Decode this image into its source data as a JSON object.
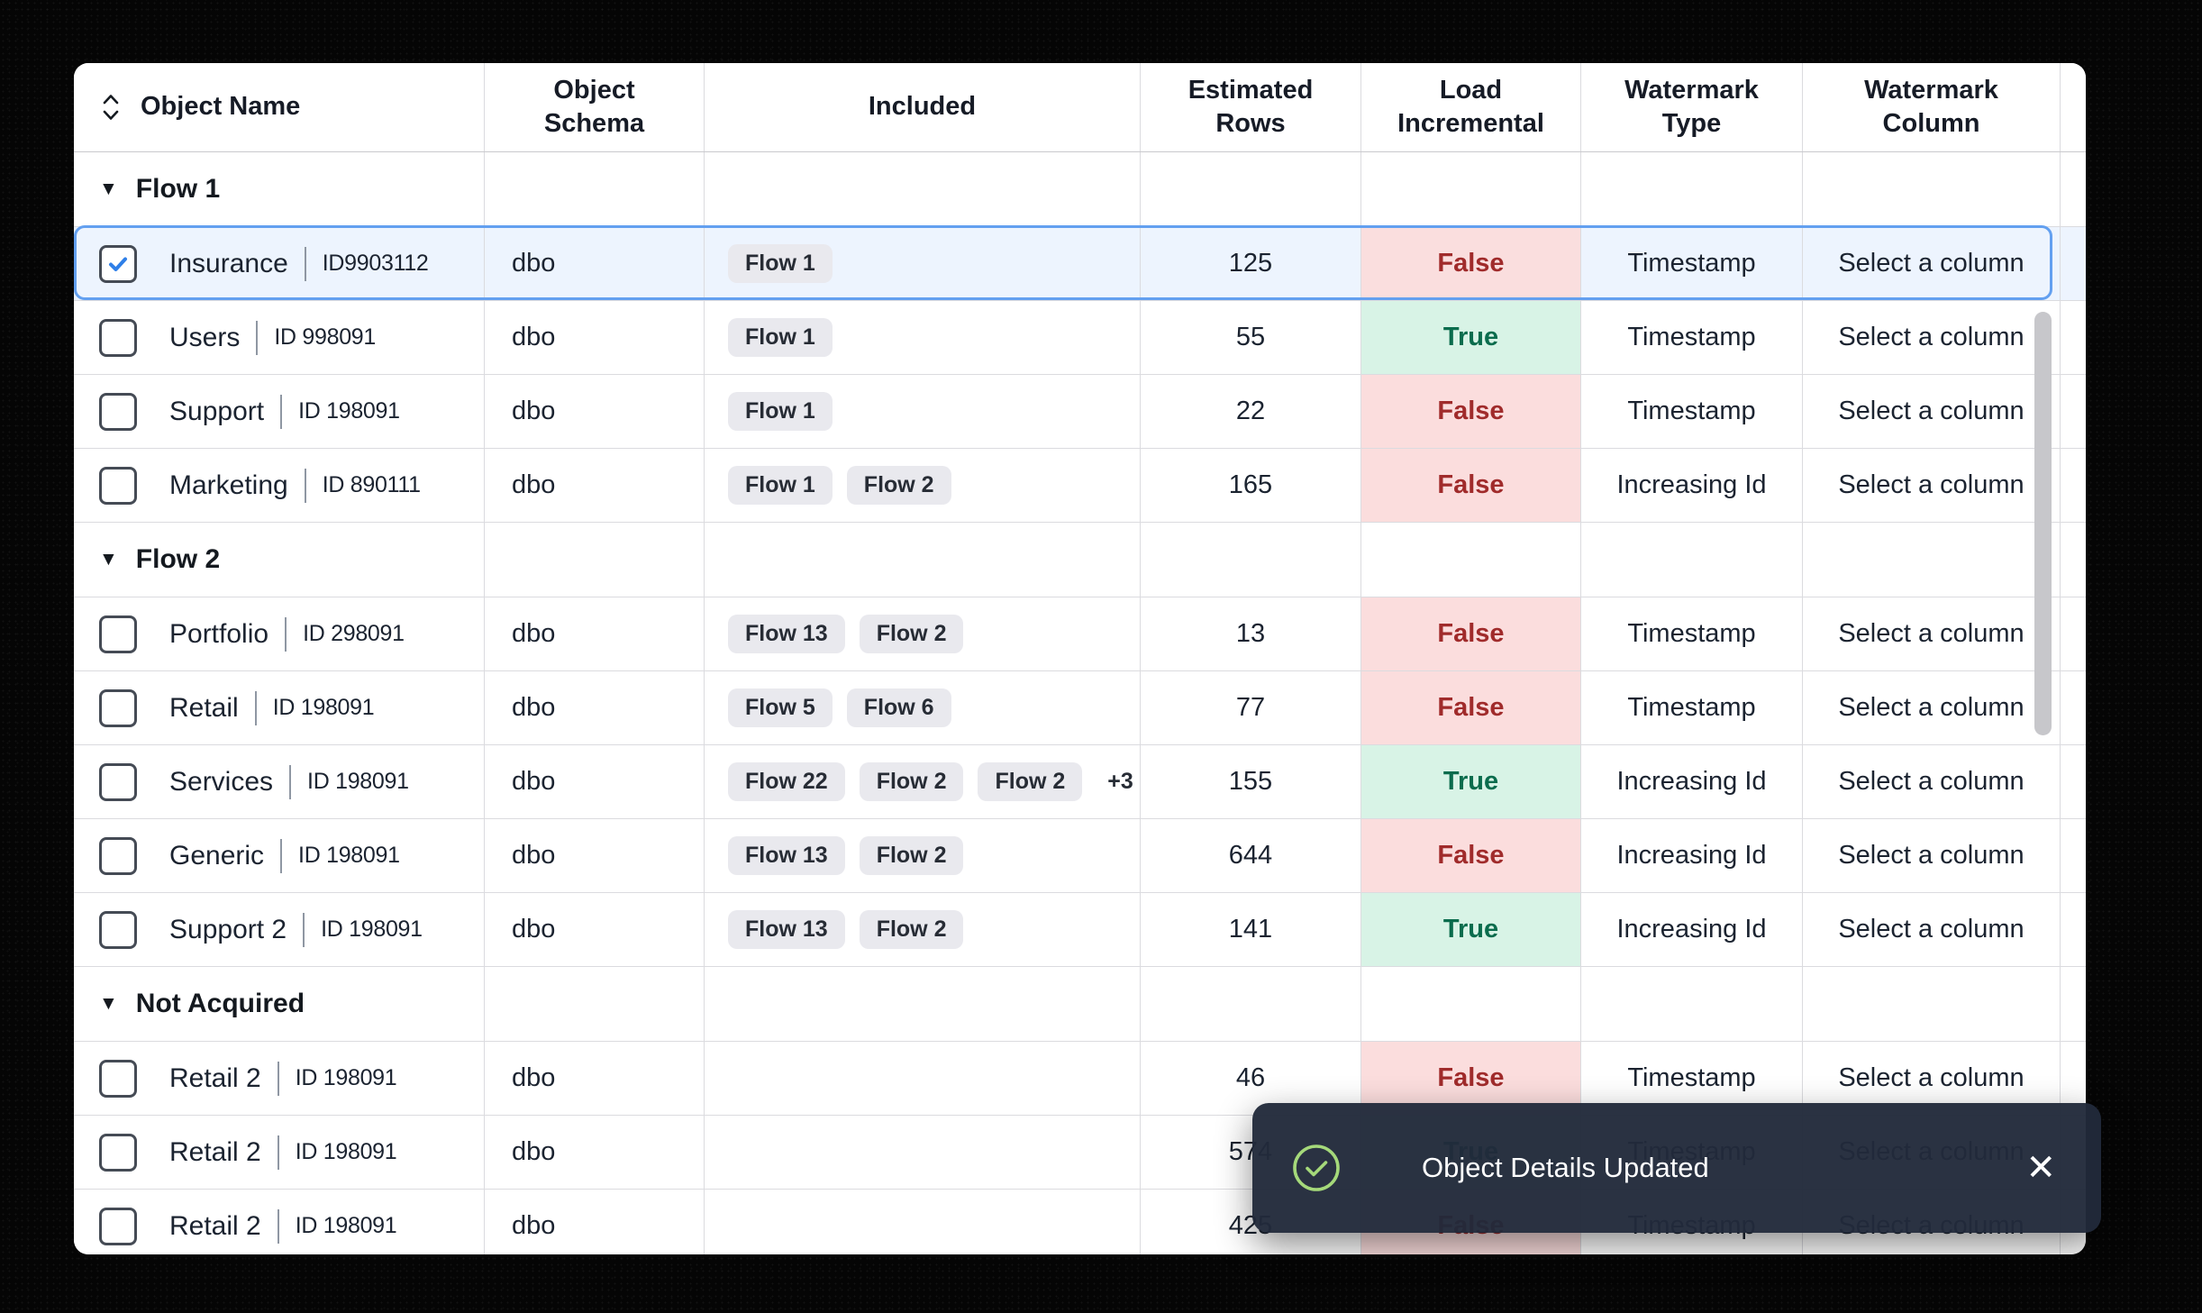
{
  "table": {
    "columns": [
      {
        "label": "Object Name",
        "sortable": true
      },
      {
        "label": "Object Schema"
      },
      {
        "label": "Included"
      },
      {
        "label": "Estimated Rows"
      },
      {
        "label": "Load Incremental"
      },
      {
        "label": "Watermark Type"
      },
      {
        "label": "Watermark Column"
      }
    ],
    "groups": [
      {
        "label": "Flow 1",
        "rows": [
          {
            "name": "Insurance",
            "id": "ID9903112",
            "schema": "dbo",
            "chips": [
              "Flow 1"
            ],
            "more": "",
            "estimated_rows": "125",
            "load_incremental": "False",
            "watermark_type": "Timestamp",
            "watermark_column": "Select a column",
            "checked": true,
            "selected": true
          },
          {
            "name": "Users",
            "id": "ID 998091",
            "schema": "dbo",
            "chips": [
              "Flow 1"
            ],
            "more": "",
            "estimated_rows": "55",
            "load_incremental": "True",
            "watermark_type": "Timestamp",
            "watermark_column": "Select a column",
            "checked": false,
            "selected": false
          },
          {
            "name": "Support",
            "id": "ID 198091",
            "schema": "dbo",
            "chips": [
              "Flow 1"
            ],
            "more": "",
            "estimated_rows": "22",
            "load_incremental": "False",
            "watermark_type": "Timestamp",
            "watermark_column": "Select a column",
            "checked": false,
            "selected": false
          },
          {
            "name": "Marketing",
            "id": "ID 890111",
            "schema": "dbo",
            "chips": [
              "Flow 1",
              "Flow 2"
            ],
            "more": "",
            "estimated_rows": "165",
            "load_incremental": "False",
            "watermark_type": "Increasing Id",
            "watermark_column": "Select a column",
            "checked": false,
            "selected": false
          }
        ]
      },
      {
        "label": "Flow 2",
        "rows": [
          {
            "name": "Portfolio",
            "id": "ID 298091",
            "schema": "dbo",
            "chips": [
              "Flow 13",
              "Flow 2"
            ],
            "more": "",
            "estimated_rows": "13",
            "load_incremental": "False",
            "watermark_type": "Timestamp",
            "watermark_column": "Select a column",
            "checked": false,
            "selected": false
          },
          {
            "name": "Retail",
            "id": "ID 198091",
            "schema": "dbo",
            "chips": [
              "Flow 5",
              "Flow 6"
            ],
            "more": "",
            "estimated_rows": "77",
            "load_incremental": "False",
            "watermark_type": "Timestamp",
            "watermark_column": "Select a column",
            "checked": false,
            "selected": false
          },
          {
            "name": "Services",
            "id": "ID 198091",
            "schema": "dbo",
            "chips": [
              "Flow 22",
              "Flow 2",
              "Flow 2"
            ],
            "more": "+3",
            "estimated_rows": "155",
            "load_incremental": "True",
            "watermark_type": "Increasing Id",
            "watermark_column": "Select a column",
            "checked": false,
            "selected": false
          },
          {
            "name": "Generic",
            "id": "ID 198091",
            "schema": "dbo",
            "chips": [
              "Flow 13",
              "Flow 2"
            ],
            "more": "",
            "estimated_rows": "644",
            "load_incremental": "False",
            "watermark_type": "Increasing Id",
            "watermark_column": "Select a column",
            "checked": false,
            "selected": false
          },
          {
            "name": "Support 2",
            "id": "ID 198091",
            "schema": "dbo",
            "chips": [
              "Flow 13",
              "Flow 2"
            ],
            "more": "",
            "estimated_rows": "141",
            "load_incremental": "True",
            "watermark_type": "Increasing Id",
            "watermark_column": "Select a column",
            "checked": false,
            "selected": false
          }
        ]
      },
      {
        "label": "Not Acquired",
        "rows": [
          {
            "name": "Retail 2",
            "id": "ID 198091",
            "schema": "dbo",
            "chips": [],
            "more": "",
            "estimated_rows": "46",
            "load_incremental": "False",
            "watermark_type": "Timestamp",
            "watermark_column": "Select a column",
            "checked": false,
            "selected": false
          },
          {
            "name": "Retail 2",
            "id": "ID 198091",
            "schema": "dbo",
            "chips": [],
            "more": "",
            "estimated_rows": "574",
            "load_incremental": "True",
            "watermark_type": "Timestamp",
            "watermark_column": "Select a column",
            "checked": false,
            "selected": false
          },
          {
            "name": "Retail 2",
            "id": "ID 198091",
            "schema": "dbo",
            "chips": [],
            "more": "",
            "estimated_rows": "425",
            "load_incremental": "False",
            "watermark_type": "Timestamp",
            "watermark_column": "Select a column",
            "checked": false,
            "selected": false
          }
        ]
      }
    ]
  },
  "toast": {
    "message": "Object Details Updated",
    "close_glyph": "✕"
  },
  "icons": {
    "group_caret": "▼",
    "sort": "sort-unfold-icon",
    "success": "check-circle-icon"
  },
  "colors": {
    "selection_border": "#63A0F0",
    "selection_bg": "#EDF4FE",
    "false_bg": "#FBDDDD",
    "false_text": "#A02B2B",
    "true_bg": "#D8F3E6",
    "true_text": "#0A6C4D",
    "chip_bg": "#E9E9EE",
    "toast_bg": "#212A3A",
    "toast_success": "#A5D97A",
    "check_blue": "#2E7FE8"
  }
}
